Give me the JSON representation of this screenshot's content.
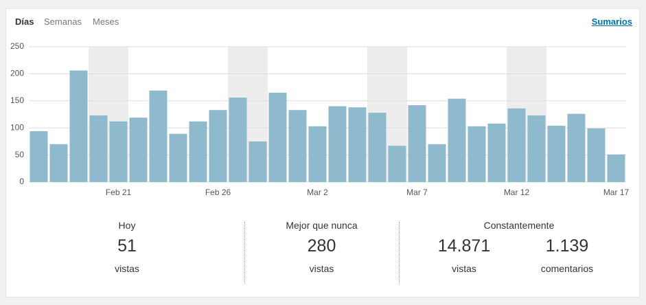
{
  "tabs": [
    "Días",
    "Semanas",
    "Meses"
  ],
  "link": "Sumarios",
  "chart_data": {
    "type": "bar",
    "categories": [
      null,
      null,
      null,
      null,
      "Feb 21",
      null,
      null,
      null,
      null,
      "Feb 26",
      null,
      null,
      null,
      null,
      "Mar 2",
      null,
      null,
      null,
      null,
      "Mar 7",
      null,
      null,
      null,
      null,
      "Mar 12",
      null,
      null,
      null,
      null,
      "Mar 17"
    ],
    "values": [
      94,
      70,
      206,
      123,
      112,
      119,
      169,
      89,
      112,
      133,
      156,
      75,
      165,
      133,
      103,
      140,
      138,
      128,
      67,
      142,
      70,
      154,
      103,
      108,
      136,
      123,
      104,
      126,
      99,
      51
    ],
    "color": "#8fb9cd",
    "ylim": [
      0,
      250
    ],
    "yticks": [
      0,
      50,
      100,
      150,
      200,
      250
    ],
    "grid": true
  },
  "stats": [
    {
      "title": "Hoy",
      "items": [
        {
          "value": "51",
          "unit": "vistas"
        }
      ]
    },
    {
      "title": "Mejor que nunca",
      "items": [
        {
          "value": "280",
          "unit": "vistas"
        }
      ]
    },
    {
      "title": "Constantemente",
      "items": [
        {
          "value": "14.871",
          "unit": "vistas"
        },
        {
          "value": "1.139",
          "unit": "comentarios"
        }
      ]
    }
  ]
}
